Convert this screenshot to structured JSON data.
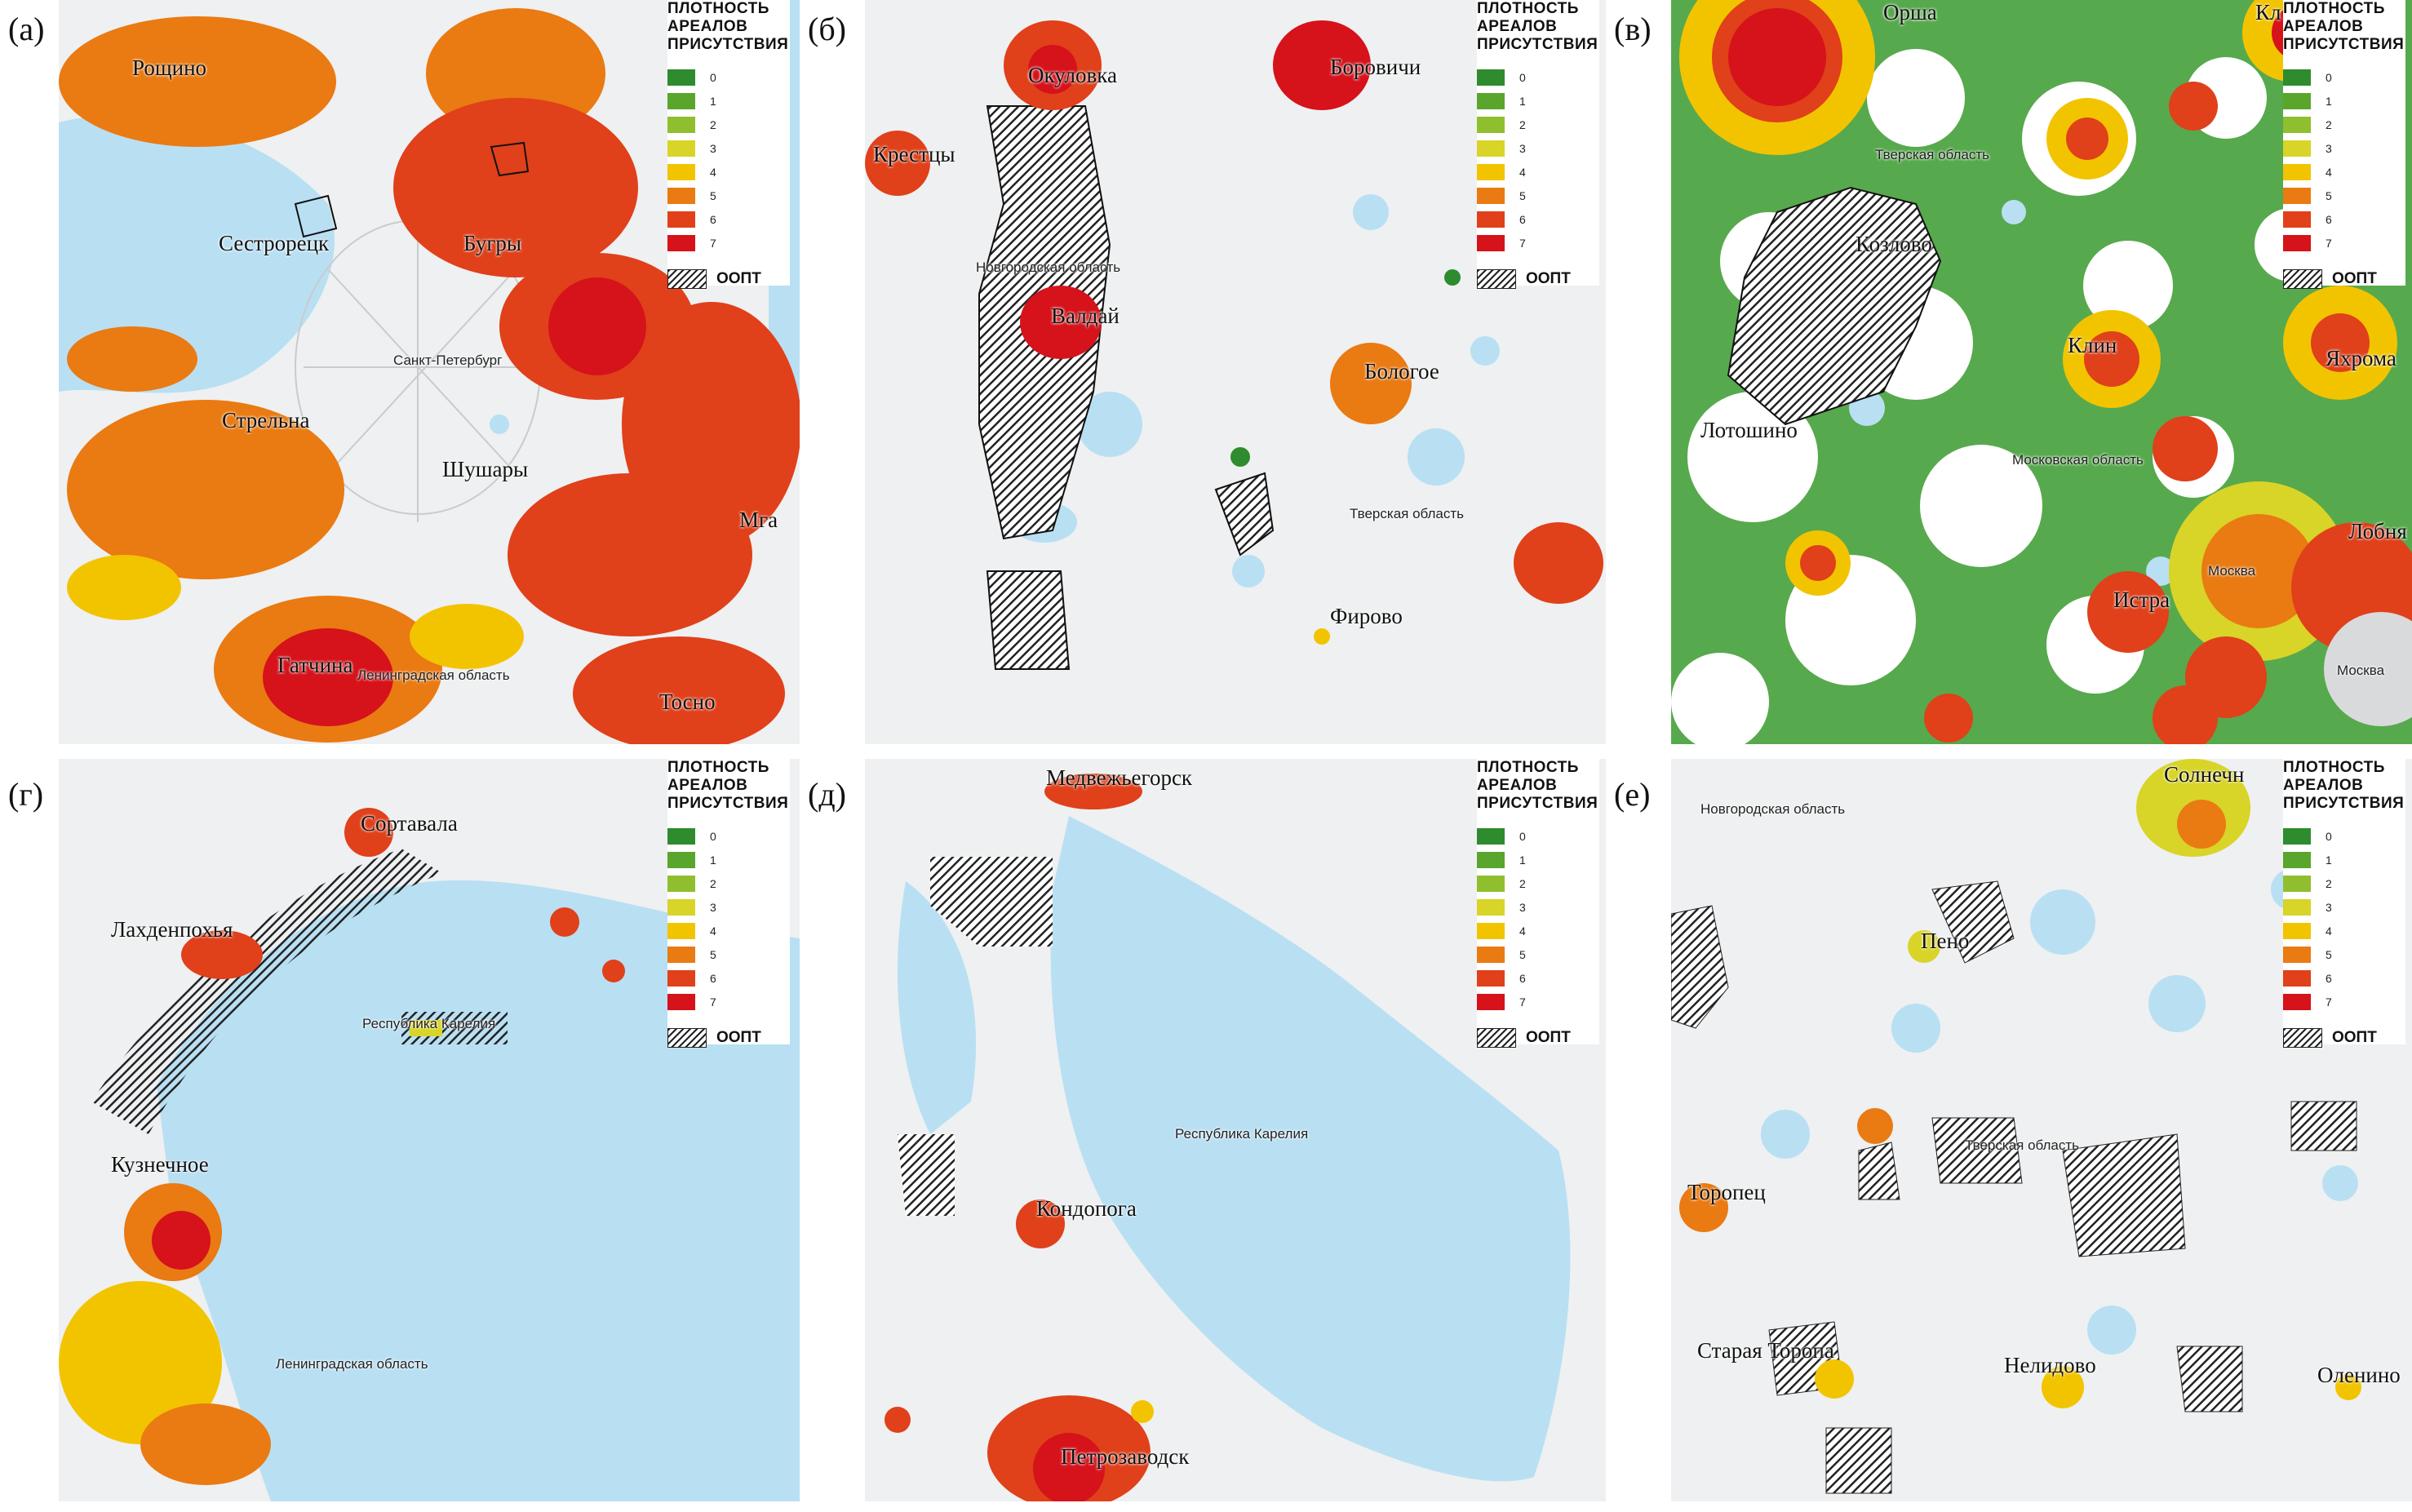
{
  "legend": {
    "title_lines": [
      "ПЛОТНОСТЬ",
      "АРЕАЛОВ",
      "ПРИСУТСТВИЯ"
    ],
    "levels": [
      {
        "value": "0",
        "color": "#2e8b2e"
      },
      {
        "value": "1",
        "color": "#5aa52c"
      },
      {
        "value": "2",
        "color": "#8fbf2e"
      },
      {
        "value": "3",
        "color": "#d8d428"
      },
      {
        "value": "4",
        "color": "#f2c400"
      },
      {
        "value": "5",
        "color": "#ea7a12"
      },
      {
        "value": "6",
        "color": "#e0401a"
      },
      {
        "value": "7",
        "color": "#d6121a"
      }
    ],
    "oopt_label": "ООПТ"
  },
  "panels": [
    {
      "letter": "(а)",
      "cities": [
        "Рощино",
        "Сестрорецк",
        "Бугры",
        "Стрельна",
        "Шушары",
        "Мга",
        "Гатчина",
        "Тосно"
      ],
      "regions": [
        "Санкт-Петербург",
        "Ленинградская область"
      ]
    },
    {
      "letter": "(б)",
      "cities": [
        "Окуловка",
        "Боровичи",
        "Крестцы",
        "Валдай",
        "Бологое",
        "Фирово"
      ],
      "regions": [
        "Новгородская область",
        "Тверская область"
      ]
    },
    {
      "letter": "(в)",
      "cities": [
        "Орша",
        "Кл",
        "Козлово",
        "Клин",
        "Яхрома",
        "Лотошино",
        "Лобня",
        "Истра"
      ],
      "regions": [
        "Тверская область",
        "Московская область",
        "Москва",
        "Москва"
      ]
    },
    {
      "letter": "(г)",
      "cities": [
        "Сортавала",
        "Лахденпохья",
        "Кузнечное"
      ],
      "regions": [
        "Республика Карелия",
        "Ленинградская область"
      ]
    },
    {
      "letter": "(д)",
      "cities": [
        "Медвежьегорск",
        "Кондопога",
        "Петрозаводск"
      ],
      "regions": [
        "Республика Карелия"
      ]
    },
    {
      "letter": "(е)",
      "cities": [
        "Солнечн",
        "Пено",
        "Торопец",
        "Старая Торопа",
        "Нелидово",
        "Оленино"
      ],
      "regions": [
        "Новгородская область",
        "Тверская область"
      ]
    }
  ]
}
